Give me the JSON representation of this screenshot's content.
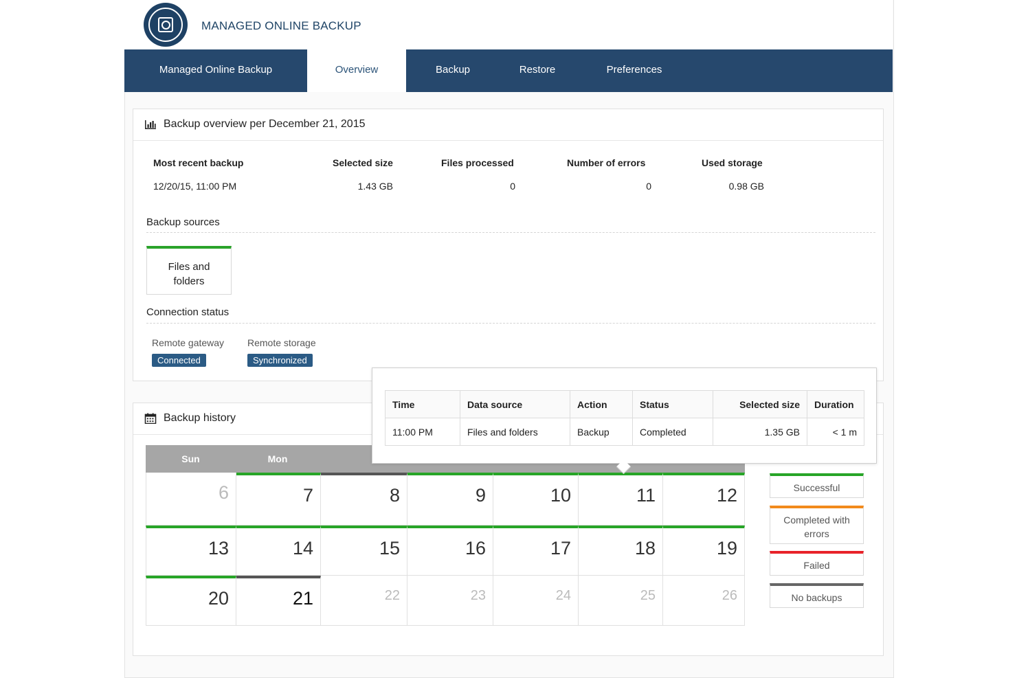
{
  "app": {
    "title": "MANAGED ONLINE BACKUP",
    "logo": "backup-shield-logo"
  },
  "nav": {
    "tabs": [
      "Managed Online Backup",
      "Overview",
      "Backup",
      "Restore",
      "Preferences"
    ],
    "active": "Overview"
  },
  "overview": {
    "title": "Backup overview per December 21, 2015",
    "icon": "bar-chart-icon",
    "stats": {
      "headers": [
        "Most recent backup",
        "Selected size",
        "Files processed",
        "Number of errors",
        "Used storage"
      ],
      "values": [
        "12/20/15, 11:00 PM",
        "1.43 GB",
        "0",
        "0",
        "0.98 GB"
      ]
    },
    "sources_label": "Backup sources",
    "source_card": "Files and folders",
    "connection_label": "Connection status",
    "remote_gateway": {
      "label": "Remote gateway",
      "status": "Connected"
    },
    "remote_storage": {
      "label": "Remote storage",
      "status": "Synchronized"
    }
  },
  "history": {
    "title": "Backup history",
    "icon": "calendar-icon",
    "days_of_week": [
      "Sun",
      "Mon"
    ],
    "weeks": [
      [
        "6",
        "7",
        "8",
        "9",
        "10",
        "11",
        "12"
      ],
      [
        "13",
        "14",
        "15",
        "16",
        "17",
        "18",
        "19"
      ],
      [
        "20",
        "21",
        "22",
        "23",
        "24",
        "25",
        "26"
      ]
    ],
    "legend": {
      "successful": "Successful",
      "errors": "Completed with errors",
      "failed": "Failed",
      "none": "No backups"
    },
    "colors": {
      "successful": "#27a527",
      "errors": "#f28a1c",
      "failed": "#e8232a",
      "none": "#666666"
    }
  },
  "popup": {
    "headers": [
      "Time",
      "Data source",
      "Action",
      "Status",
      "Selected size",
      "Duration"
    ],
    "row": [
      "11:00 PM",
      "Files and folders",
      "Backup",
      "Completed",
      "1.35 GB",
      "< 1 m"
    ]
  }
}
